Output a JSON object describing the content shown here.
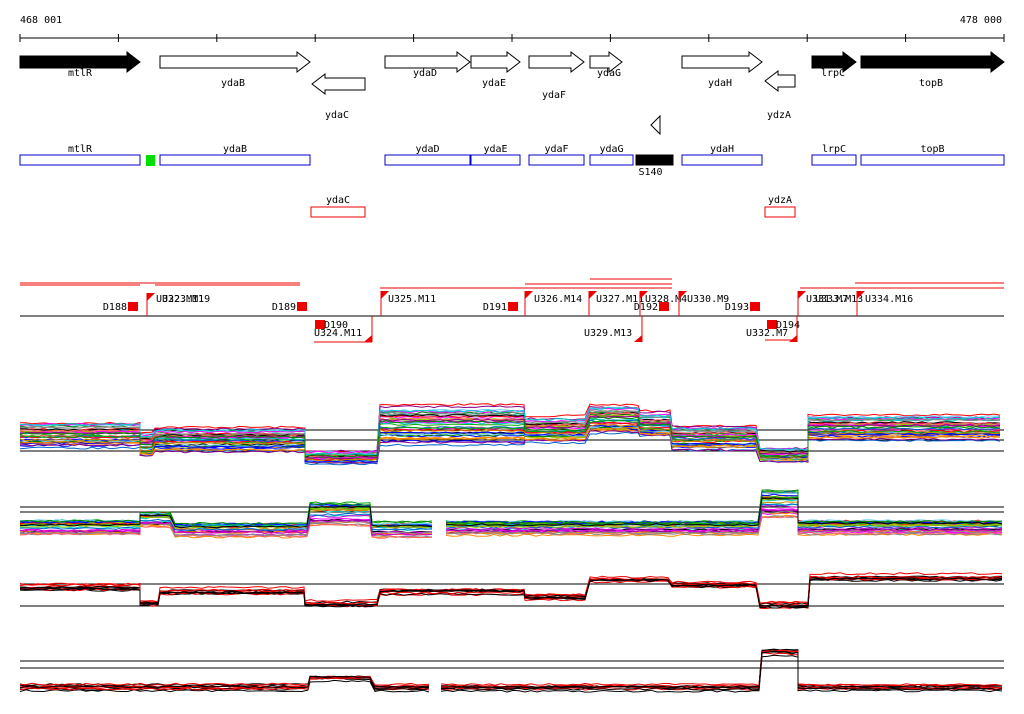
{
  "ruler": {
    "start": "468 001",
    "end": "478 000"
  },
  "genes": [
    "mtlR",
    "ydaB",
    "ydaC",
    "ydaD",
    "ydaE",
    "ydaF",
    "ydaG",
    "ydaH",
    "ydzA",
    "lrpC",
    "topB"
  ],
  "gene_boxes": [
    "mtlR",
    "ydaB",
    "ydaD",
    "ydaE",
    "ydaF",
    "ydaG",
    "S140",
    "ydaH",
    "lrpC",
    "topB",
    "ydaC",
    "ydzA"
  ],
  "segments": [
    "D188",
    "U322.M11",
    "U323.M19",
    "D189",
    "U325.M11",
    "D190",
    "U324.M11",
    "D191",
    "U326.M14",
    "U327.M11",
    "D192",
    "U328.M4",
    "U330.M9",
    "U329.M13",
    "D193",
    "U331.M7",
    "U333.M13",
    "U334.M16",
    "D194",
    "U332.M7"
  ]
}
